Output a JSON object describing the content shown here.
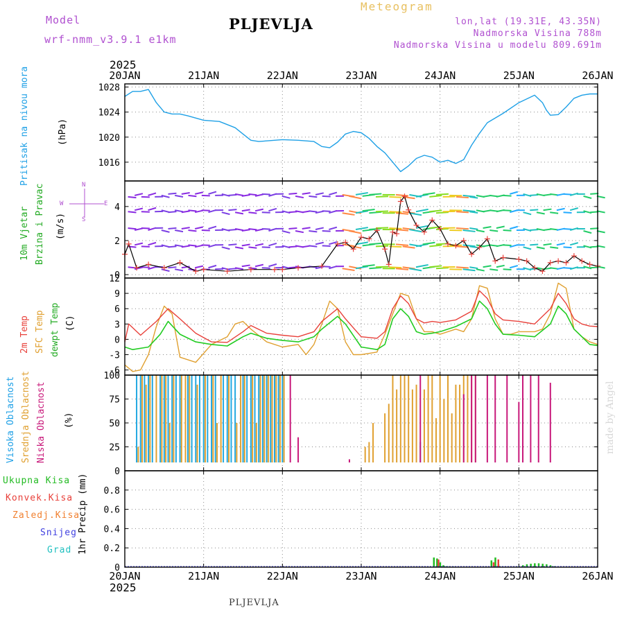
{
  "header": {
    "model_label": "Model",
    "model_name": "wrf-nmm_v3.9.1 e1km",
    "station": "PLJEVLJA",
    "product": "Meteogram",
    "coords": "lon,lat (19.31E, 43.35N)",
    "elevation": "Nadmorska Visina 788m",
    "model_elevation": "Nadmorska Visina u modelu 809.691m",
    "year_top": "2025",
    "year_bottom": "2025",
    "footer_station": "PLJEVLJA",
    "credit": "made by Angel"
  },
  "colors": {
    "pressure": "#1ea0e6",
    "temp2m": "#e8403a",
    "sfc": "#e0a030",
    "dewpt": "#22cc22",
    "high_cloud": "#22a8e0",
    "mid_cloud": "#e0a030",
    "low_cloud": "#c8187a",
    "wind_label": "#22aa22",
    "precip_total": "#22bb22",
    "precip_conv": "#e8403a",
    "precip_frozen": "#f08030",
    "precip_snow": "#4040e0",
    "precip_grad": "#20c0c0",
    "model_text": "#b050d0",
    "meteogram_text": "#e8c060"
  },
  "chart_data": [
    {
      "type": "line",
      "panel": "pressure",
      "ylabel": [
        "Pritisak na nivou mora",
        "(hPa)"
      ],
      "x_tick_labels": [
        "20JAN",
        "21JAN",
        "22JAN",
        "23JAN",
        "24JAN",
        "25JAN",
        "26JAN"
      ],
      "ylim": [
        1013,
        1028.5
      ],
      "yticks": [
        1016,
        1020,
        1024,
        1028
      ],
      "grid": true,
      "series": [
        {
          "name": "Pritisak na nivou mora",
          "x": [
            0,
            0.1,
            0.2,
            0.3,
            0.4,
            0.5,
            0.6,
            0.7,
            0.8,
            1.0,
            1.2,
            1.4,
            1.5,
            1.6,
            1.7,
            1.8,
            2.0,
            2.2,
            2.4,
            2.5,
            2.6,
            2.7,
            2.8,
            2.9,
            3.0,
            3.1,
            3.2,
            3.3,
            3.4,
            3.5,
            3.6,
            3.7,
            3.8,
            3.9,
            4.0,
            4.1,
            4.2,
            4.3,
            4.4,
            4.5,
            4.6,
            4.8,
            5.0,
            5.2,
            5.3,
            5.35,
            5.4,
            5.5,
            5.6,
            5.7,
            5.8,
            5.9,
            6.0
          ],
          "values": [
            1026.5,
            1027.3,
            1027.3,
            1027.6,
            1025.5,
            1024,
            1023.7,
            1023.7,
            1023.4,
            1022.7,
            1022.5,
            1021.5,
            1020.5,
            1019.5,
            1019.3,
            1019.4,
            1019.6,
            1019.5,
            1019.3,
            1018.5,
            1018.3,
            1019.2,
            1020.5,
            1020.9,
            1020.7,
            1019.8,
            1018.5,
            1017.5,
            1016,
            1014.5,
            1015.4,
            1016.6,
            1017.1,
            1016.8,
            1016,
            1016.3,
            1015.8,
            1016.4,
            1018.7,
            1020.6,
            1022.3,
            1023.8,
            1025.5,
            1026.7,
            1025.5,
            1024.3,
            1023.5,
            1023.6,
            1024.8,
            1026.2,
            1026.7,
            1026.9,
            1026.9
          ]
        }
      ]
    },
    {
      "type": "line",
      "panel": "wind",
      "ylabel": [
        "10m Vjetar",
        "Brzina i Pravac",
        "(m/s)"
      ],
      "compass": [
        "N",
        "S",
        "W",
        "E"
      ],
      "x_tick_labels": [
        "20JAN",
        "21JAN",
        "22JAN",
        "23JAN",
        "24JAN",
        "25JAN",
        "26JAN"
      ],
      "ylim": [
        -0.2,
        5.5
      ],
      "yticks": [
        0,
        2,
        4
      ],
      "grid": true,
      "series": [
        {
          "name": "speed",
          "x": [
            0,
            0.05,
            0.15,
            0.3,
            0.5,
            0.7,
            0.9,
            1.0,
            1.3,
            1.6,
            1.9,
            2.0,
            2.2,
            2.5,
            2.7,
            2.8,
            2.9,
            3.0,
            3.1,
            3.2,
            3.3,
            3.35,
            3.4,
            3.45,
            3.5,
            3.55,
            3.6,
            3.7,
            3.8,
            3.9,
            4.0,
            4.1,
            4.2,
            4.3,
            4.4,
            4.5,
            4.6,
            4.7,
            4.8,
            5.0,
            5.1,
            5.2,
            5.3,
            5.4,
            5.5,
            5.6,
            5.7,
            5.8,
            5.9,
            6.0
          ],
          "values": [
            1.2,
            1.8,
            0.4,
            0.6,
            0.4,
            0.7,
            0.2,
            0.3,
            0.2,
            0.3,
            0.3,
            0.3,
            0.4,
            0.5,
            1.8,
            1.9,
            1.5,
            2.2,
            2.1,
            2.6,
            1.5,
            0.6,
            2.5,
            2.4,
            4.3,
            4.6,
            3.8,
            2.9,
            2.5,
            3.2,
            2.7,
            1.8,
            1.7,
            2.0,
            1.2,
            1.6,
            2.1,
            0.8,
            1.0,
            0.9,
            0.8,
            0.4,
            0.2,
            0.7,
            0.8,
            0.7,
            1.1,
            0.8,
            0.6,
            0.5
          ]
        }
      ]
    },
    {
      "type": "line",
      "panel": "temperature",
      "ylabel": [
        "2m Temp",
        "SFC Temp",
        "dewpt Temp",
        "(C)"
      ],
      "x_tick_labels": [
        "20JAN",
        "21JAN",
        "22JAN",
        "23JAN",
        "24JAN",
        "25JAN",
        "26JAN"
      ],
      "ylim": [
        -7,
        12
      ],
      "yticks": [
        -6,
        -3,
        0,
        3,
        6,
        9,
        12
      ],
      "grid": true,
      "series": [
        {
          "name": "2m Temp",
          "x": [
            0,
            0.05,
            0.2,
            0.4,
            0.55,
            0.7,
            0.9,
            1.1,
            1.3,
            1.5,
            1.6,
            1.8,
            2.0,
            2.2,
            2.4,
            2.5,
            2.7,
            2.8,
            3.0,
            3.2,
            3.3,
            3.4,
            3.5,
            3.6,
            3.7,
            3.8,
            3.9,
            4.0,
            4.2,
            4.4,
            4.5,
            4.6,
            4.7,
            4.8,
            5.0,
            5.2,
            5.4,
            5.5,
            5.6,
            5.7,
            5.8,
            5.9,
            6.0
          ],
          "values": [
            -0.5,
            3.0,
            0.8,
            3.5,
            6.0,
            4.0,
            1.2,
            -0.5,
            -0.6,
            1.5,
            2.7,
            1.2,
            0.8,
            0.5,
            1.5,
            3.5,
            6.0,
            4.0,
            0.5,
            0.2,
            1.5,
            6.0,
            8.5,
            7.0,
            4.0,
            3.2,
            3.5,
            3.3,
            3.8,
            5.5,
            9.5,
            8.0,
            5.0,
            3.8,
            3.5,
            3.0,
            6.0,
            9.0,
            7.0,
            4.0,
            3.0,
            2.6,
            2.5
          ]
        },
        {
          "name": "SFC Temp",
          "x": [
            0,
            0.1,
            0.2,
            0.3,
            0.4,
            0.5,
            0.6,
            0.7,
            0.9,
            1.1,
            1.3,
            1.4,
            1.5,
            1.6,
            1.8,
            2.0,
            2.2,
            2.3,
            2.4,
            2.5,
            2.6,
            2.7,
            2.8,
            2.9,
            3.0,
            3.2,
            3.3,
            3.4,
            3.5,
            3.6,
            3.7,
            3.8,
            3.9,
            4.0,
            4.2,
            4.3,
            4.4,
            4.5,
            4.6,
            4.7,
            4.8,
            4.9,
            5.0,
            5.2,
            5.3,
            5.4,
            5.5,
            5.6,
            5.7,
            5.8,
            5.9,
            6.0
          ],
          "values": [
            -5.0,
            -6.3,
            -6.0,
            -3.0,
            2.5,
            6.5,
            5.0,
            -3.5,
            -4.5,
            -1.0,
            0.5,
            3.0,
            3.5,
            2.0,
            -0.5,
            -1.5,
            -1.0,
            -3.0,
            -1.0,
            3.0,
            7.5,
            6.0,
            -0.5,
            -3.0,
            -3.0,
            -2.5,
            1.0,
            5.0,
            9.0,
            8.5,
            4.0,
            1.5,
            1.5,
            1.0,
            2.0,
            1.5,
            4.0,
            10.5,
            10.0,
            4.0,
            1.0,
            1.0,
            1.5,
            1.5,
            2.0,
            5.0,
            11.0,
            10.0,
            2.0,
            0.5,
            -0.5,
            -1.0
          ]
        },
        {
          "name": "dewpt Temp",
          "x": [
            0,
            0.1,
            0.3,
            0.45,
            0.55,
            0.7,
            0.9,
            1.1,
            1.3,
            1.5,
            1.6,
            1.8,
            2.0,
            2.2,
            2.4,
            2.5,
            2.7,
            2.8,
            3.0,
            3.2,
            3.3,
            3.4,
            3.5,
            3.6,
            3.7,
            3.8,
            3.9,
            4.0,
            4.2,
            4.4,
            4.5,
            4.6,
            4.7,
            4.8,
            5.0,
            5.2,
            5.4,
            5.5,
            5.6,
            5.7,
            5.8,
            5.9,
            6.0
          ],
          "values": [
            -1.5,
            -2.0,
            -1.5,
            1.0,
            3.5,
            1.0,
            -0.5,
            -1.0,
            -1.3,
            0.5,
            1.2,
            0.2,
            -0.2,
            -0.5,
            0.5,
            2.0,
            4.5,
            3.0,
            -1.5,
            -2.0,
            -1.0,
            4.0,
            6.0,
            4.5,
            1.5,
            1.0,
            1.2,
            1.5,
            2.5,
            4.0,
            7.5,
            6.0,
            3.0,
            1.0,
            0.8,
            0.5,
            3.0,
            6.5,
            5.0,
            2.0,
            0.5,
            -1.0,
            -1.2
          ]
        }
      ]
    },
    {
      "type": "bar",
      "panel": "cloud",
      "ylabel": [
        "Visoka Oblacnost",
        "Srednja Oblacnost",
        "Niska Oblacnost",
        "(%)"
      ],
      "x_tick_labels": [
        "20JAN",
        "21JAN",
        "22JAN",
        "23JAN",
        "24JAN",
        "25JAN",
        "26JAN"
      ],
      "ylim": [
        0,
        100
      ],
      "yticks": [
        0,
        25,
        50,
        75,
        100
      ],
      "grid": true,
      "series": [
        {
          "name": "Visoka Oblacnost",
          "x": [
            0.15,
            0.2,
            0.25,
            0.3,
            0.35,
            0.45,
            0.5,
            0.55,
            0.6,
            0.65,
            0.7,
            0.8,
            0.85,
            0.9,
            0.95,
            1.0,
            1.05,
            1.1,
            1.15,
            1.25,
            1.3,
            1.35,
            1.4,
            1.5,
            1.55,
            1.6,
            1.65,
            1.7,
            1.75,
            1.8,
            1.85,
            1.9,
            1.95,
            2.0,
            3.75
          ],
          "values": [
            100,
            100,
            100,
            100,
            100,
            100,
            100,
            100,
            100,
            100,
            100,
            100,
            100,
            100,
            100,
            100,
            100,
            100,
            100,
            100,
            100,
            100,
            100,
            100,
            100,
            100,
            100,
            100,
            100,
            100,
            100,
            100,
            100,
            100,
            30
          ]
        },
        {
          "name": "Srednja Oblacnost",
          "x": [
            0.17,
            0.22,
            0.27,
            0.32,
            0.4,
            0.47,
            0.52,
            0.57,
            0.62,
            0.72,
            0.77,
            0.82,
            0.92,
            1.02,
            1.12,
            1.17,
            1.22,
            1.32,
            1.42,
            1.47,
            1.52,
            1.62,
            1.67,
            1.72,
            1.77,
            1.82,
            1.87,
            1.92,
            1.97,
            2.02,
            3.05,
            3.1,
            3.15,
            3.3,
            3.35,
            3.4,
            3.45,
            3.5,
            3.55,
            3.6,
            3.65,
            3.7,
            3.8,
            3.85,
            3.9,
            3.95,
            4.0,
            4.05,
            4.1,
            4.15,
            4.2,
            4.25,
            4.3,
            4.35,
            4.4,
            4.45
          ],
          "values": [
            25,
            100,
            90,
            100,
            100,
            100,
            100,
            50,
            100,
            100,
            100,
            100,
            90,
            100,
            100,
            50,
            100,
            100,
            50,
            100,
            100,
            100,
            50,
            100,
            100,
            100,
            100,
            100,
            100,
            100,
            25,
            30,
            50,
            60,
            70,
            100,
            85,
            100,
            100,
            100,
            85,
            90,
            85,
            100,
            100,
            55,
            100,
            75,
            100,
            60,
            90,
            90,
            100,
            100,
            100,
            100
          ]
        },
        {
          "name": "Niska Oblacnost",
          "x": [
            2.1,
            2.2,
            2.85,
            3.75,
            4.3,
            4.4,
            4.45,
            4.6,
            4.7,
            4.85,
            5.0,
            5.05,
            5.15,
            5.25,
            5.4
          ],
          "values": [
            100,
            35,
            12,
            100,
            80,
            100,
            100,
            100,
            100,
            100,
            72,
            100,
            100,
            100,
            92
          ]
        }
      ]
    },
    {
      "type": "bar",
      "panel": "precip",
      "ylabel": [
        "1hr Precip (mm)"
      ],
      "legend": [
        "Ukupna Kisa",
        "Konvek.Kisa",
        "Zaledj.Kisa",
        "Snijeg",
        "Grad"
      ],
      "x_tick_labels": [
        "20JAN",
        "21JAN",
        "22JAN",
        "23JAN",
        "24JAN",
        "25JAN",
        "26JAN"
      ],
      "ylim": [
        0,
        1.0
      ],
      "yticks": [
        0,
        0.2,
        0.4,
        0.6,
        0.8
      ],
      "grid": true,
      "series": [
        {
          "name": "Ukupna Kisa",
          "x": [
            3.92,
            3.96,
            4.0,
            4.04,
            4.08,
            4.12,
            4.16,
            4.65,
            4.7,
            4.74,
            5.0,
            5.05,
            5.1,
            5.15,
            5.2,
            5.25,
            5.3,
            5.35,
            5.4,
            5.45
          ],
          "values": [
            0.1,
            0.09,
            0.05,
            0.02,
            0.01,
            0.01,
            0.01,
            0.07,
            0.1,
            0.03,
            0.01,
            0.02,
            0.03,
            0.035,
            0.04,
            0.04,
            0.035,
            0.03,
            0.02,
            0.01
          ]
        },
        {
          "name": "Konvek.Kisa",
          "x": [
            3.96,
            4.66,
            4.72
          ],
          "values": [
            0.08,
            0.05,
            0.08
          ]
        }
      ]
    }
  ]
}
